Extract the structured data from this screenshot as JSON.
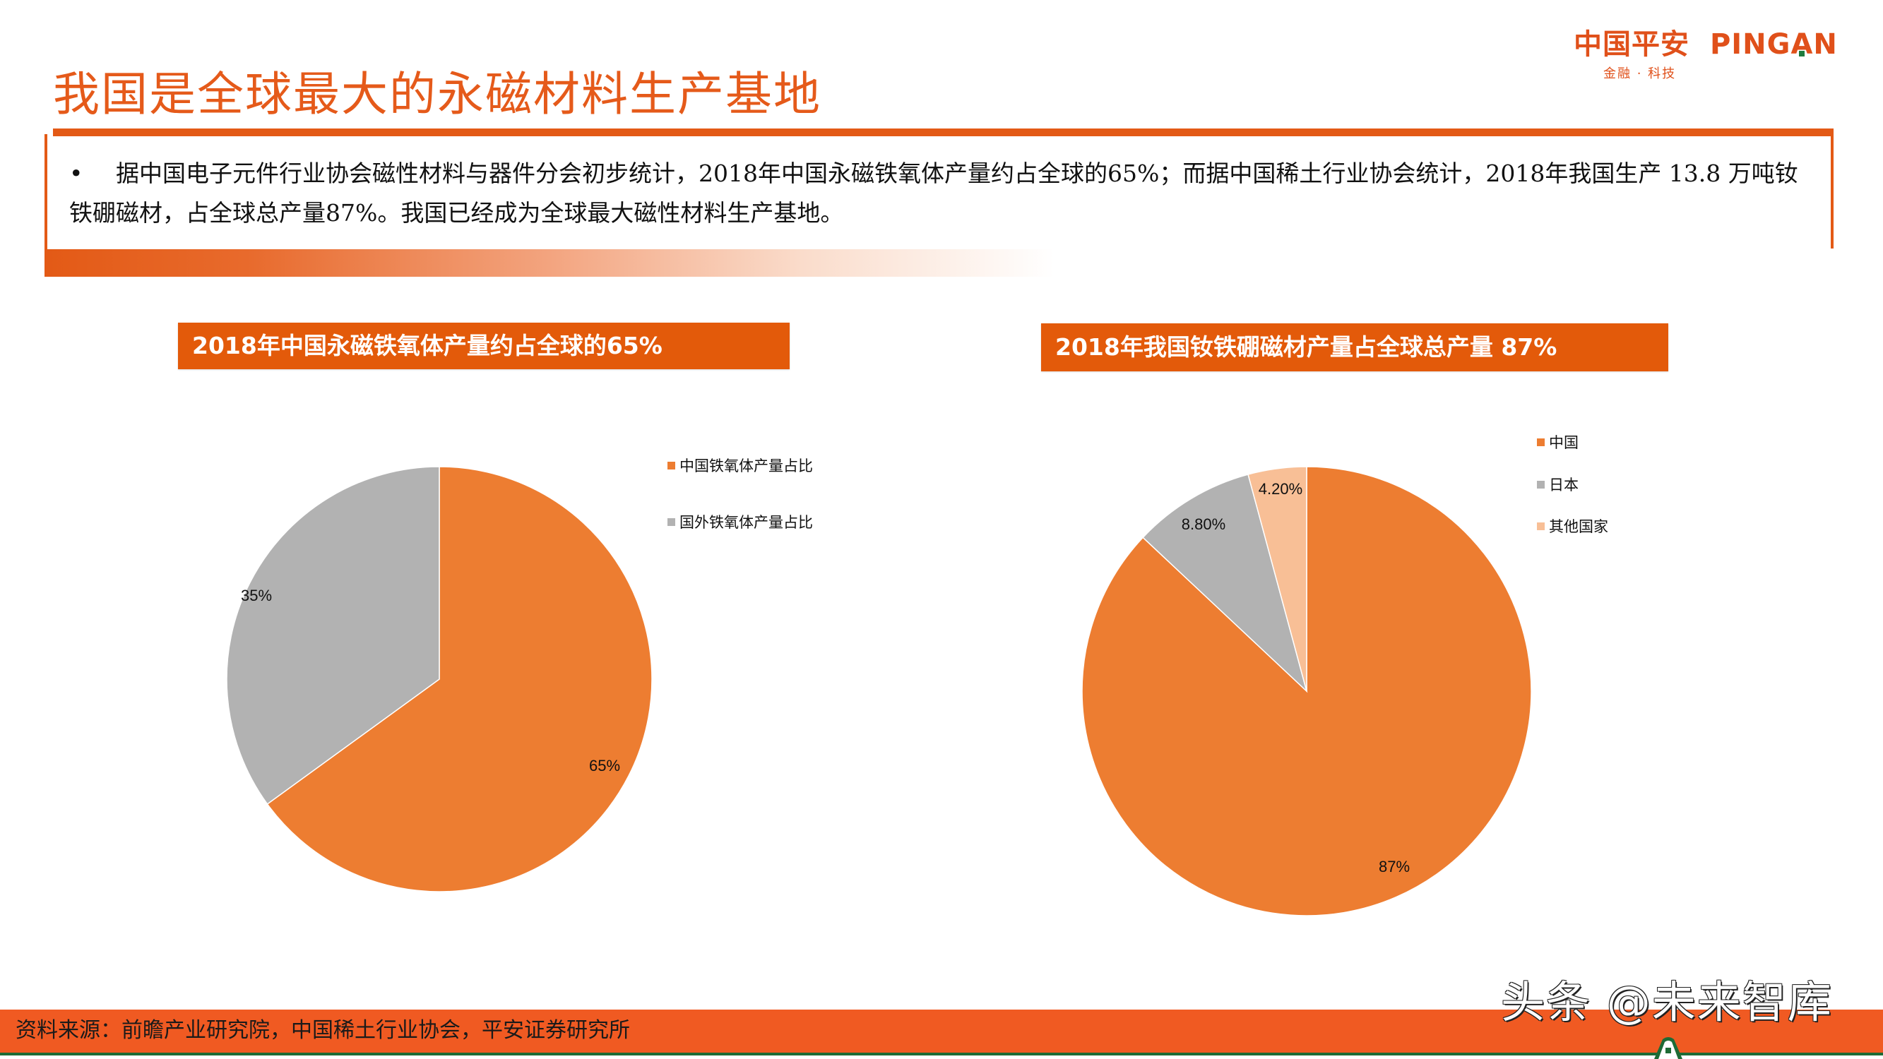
{
  "header": {
    "title": "我国是全球最大的永磁材料生产基地",
    "logo": {
      "main_cn": "中国平安",
      "main_en_pre": "PING",
      "main_en_a": "A",
      "main_en_post": "N",
      "sub": "金融 · 科技",
      "accent_color": "#E0501A",
      "square_color": "#1E7B3E"
    }
  },
  "summary": {
    "bullet": "•",
    "text": "据中国电子元件行业协会磁性材料与器件分会初步统计，2018年中国永磁铁氧体产量约占全球的65%；而据中国稀土行业协会统计，2018年我国生产 13.8 万吨钕铁硼磁材，占全球总产量87%。我国已经成为全球最大磁性材料生产基地。"
  },
  "charts": {
    "left": {
      "title": "2018年中国永磁铁氧体产量约占全球的65%",
      "legend": [
        {
          "label": "中国铁氧体产量占比",
          "color": "#ED7D31"
        },
        {
          "label": "国外铁氧体产量占比",
          "color": "#B2B2B2"
        }
      ],
      "labels": [
        {
          "text": "65%"
        },
        {
          "text": "35%"
        }
      ]
    },
    "right": {
      "title": "2018年我国钕铁硼磁材产量占全球总产量 87%",
      "legend": [
        {
          "label": "中国",
          "color": "#ED7D31"
        },
        {
          "label": "日本",
          "color": "#B2B2B2"
        },
        {
          "label": "其他国家",
          "color": "#F8BF96"
        }
      ],
      "labels": [
        {
          "text": "87%"
        },
        {
          "text": "8.80%"
        },
        {
          "text": "4.20%"
        }
      ]
    }
  },
  "chart_data": [
    {
      "type": "pie",
      "title": "2018年中国永磁铁氧体产量约占全球的65%",
      "categories": [
        "中国铁氧体产量占比",
        "国外铁氧体产量占比"
      ],
      "values": [
        65,
        35
      ],
      "data_labels": [
        "65%",
        "35%"
      ],
      "colors": [
        "#ED7D31",
        "#B2B2B2"
      ],
      "start_angle": "12 o'clock, clockwise",
      "legend_position": "right"
    },
    {
      "type": "pie",
      "title": "2018年我国钕铁硼磁材产量占全球总产量 87%",
      "categories": [
        "中国",
        "日本",
        "其他国家"
      ],
      "values": [
        87,
        8.8,
        4.2
      ],
      "data_labels": [
        "87%",
        "8.80%",
        "4.20%"
      ],
      "colors": [
        "#ED7D31",
        "#B2B2B2",
        "#F8BF96"
      ],
      "start_angle": "12 o'clock, clockwise",
      "legend_position": "right"
    }
  ],
  "footer": {
    "source": "资料来源：前瞻产业研究院，中国稀土行业协会，平安证券研究所",
    "watermark": "头条 @未来智库",
    "bar_color": "#F05A22",
    "line_color": "#1E6B35"
  }
}
